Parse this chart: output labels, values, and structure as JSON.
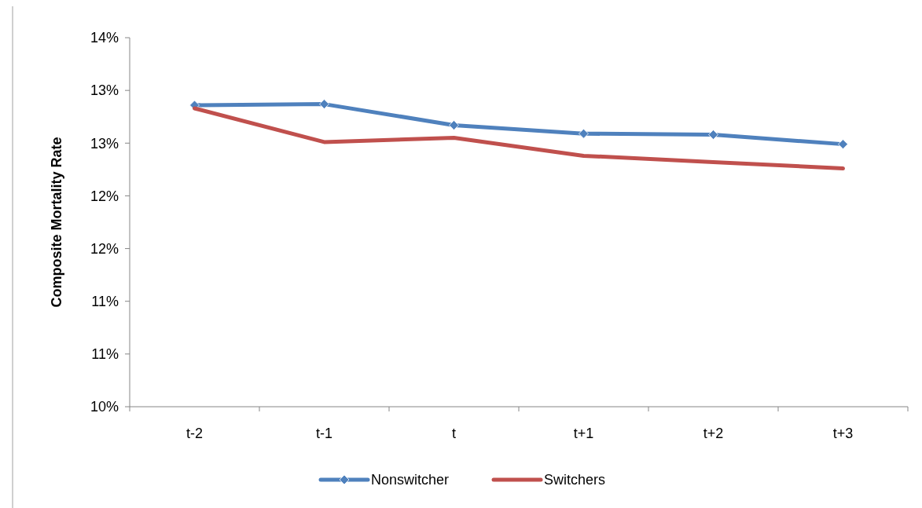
{
  "chart_data": {
    "type": "line",
    "ylabel": "Composite Mortality Rate",
    "categories": [
      "t-2",
      "t-1",
      "t",
      "t+1",
      "t+2",
      "t+3"
    ],
    "series": [
      {
        "name": "Nonswitcher",
        "color": "#4f81bd",
        "marker": "diamond",
        "values": [
          12.86,
          12.87,
          12.67,
          12.59,
          12.58,
          12.49
        ]
      },
      {
        "name": "Switchers",
        "color": "#c0504d",
        "marker": "none",
        "values": [
          12.83,
          12.51,
          12.55,
          12.38,
          12.32,
          12.26
        ]
      }
    ],
    "ylim": [
      10,
      13.5
    ],
    "yticks": [
      {
        "value": 10,
        "label": "10%"
      },
      {
        "value": 10.5,
        "label": "11%"
      },
      {
        "value": 11,
        "label": "11%"
      },
      {
        "value": 11.5,
        "label": "12%"
      },
      {
        "value": 12,
        "label": "12%"
      },
      {
        "value": 12.5,
        "label": "13%"
      },
      {
        "value": 13,
        "label": "13%"
      },
      {
        "value": 13.5,
        "label": "14%"
      }
    ],
    "grid": false,
    "legend": "bottom",
    "line_style": "solid"
  }
}
